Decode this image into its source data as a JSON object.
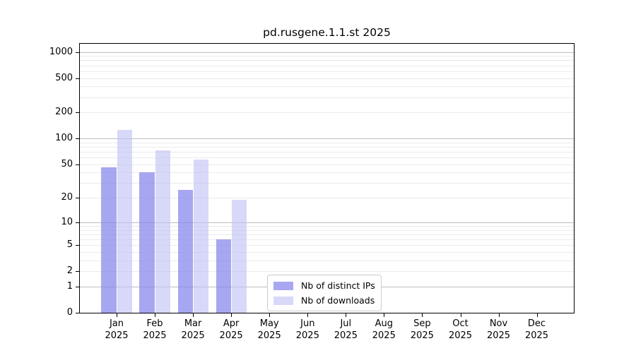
{
  "chart_data": {
    "type": "bar",
    "title": "pd.rusgene.1.1.st 2025",
    "categories": [
      "Jan",
      "Feb",
      "Mar",
      "Apr",
      "May",
      "Jun",
      "Jul",
      "Aug",
      "Sep",
      "Oct",
      "Nov",
      "Dec"
    ],
    "category_sub_label": "2025",
    "series": [
      {
        "name": "Nb of distinct IPs",
        "color": "#8a8aec",
        "values": [
          46,
          40,
          25,
          6,
          0,
          0,
          0,
          0,
          0,
          0,
          0,
          0
        ]
      },
      {
        "name": "Nb of downloads",
        "color": "#c0c0f4",
        "values": [
          127,
          73,
          57,
          19,
          0,
          0,
          0,
          0,
          0,
          0,
          0,
          0
        ]
      }
    ],
    "yticks": [
      0,
      1,
      2,
      5,
      10,
      20,
      50,
      100,
      200,
      500,
      1000
    ],
    "ylim": [
      0,
      1000
    ],
    "yscale": "log10(1+y)",
    "grid": {
      "orientation": "horizontal",
      "major_color": "#bdbdbd",
      "minor_color": "#ebebeb",
      "majors_at": [
        1,
        10,
        100,
        1000
      ]
    },
    "legend": {
      "position": "lower center"
    }
  }
}
